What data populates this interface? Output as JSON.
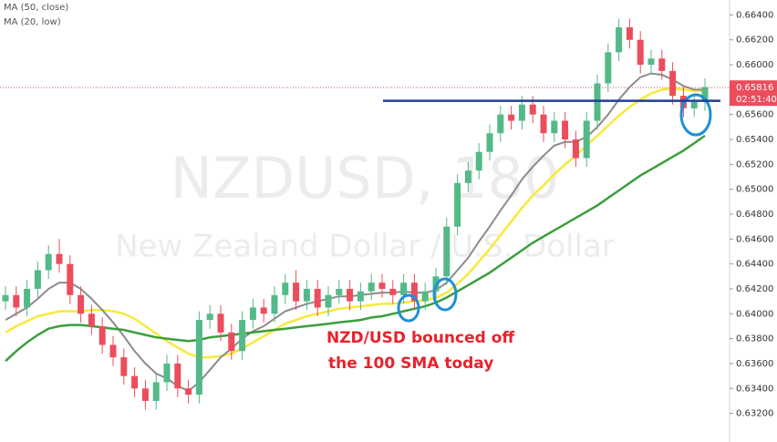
{
  "chart_data": {
    "type": "candlestick",
    "watermark_title": "NZDUSD, 180",
    "watermark_subtitle": "New Zealand Dollar / U.S. Dollar",
    "annotation_lines": [
      "NZD/USD bounced off",
      "the 100 SMA today"
    ],
    "annotation_color": "#e8222b",
    "up_color": "#53b987",
    "down_color": "#eb4d5c",
    "open": [
      0.641,
      0.6415,
      0.6405,
      0.642,
      0.6435,
      0.6448,
      0.644,
      0.6415,
      0.64,
      0.639,
      0.6375,
      0.6365,
      0.635,
      0.634,
      0.633,
      0.6345,
      0.636,
      0.634,
      0.6335,
      0.6395,
      0.64,
      0.6385,
      0.637,
      0.6395,
      0.6405,
      0.64,
      0.6415,
      0.6425,
      0.641,
      0.642,
      0.6405,
      0.6415,
      0.642,
      0.641,
      0.6418,
      0.6425,
      0.642,
      0.6415,
      0.6425,
      0.641,
      0.6418,
      0.643,
      0.647,
      0.6505,
      0.6515,
      0.653,
      0.6545,
      0.656,
      0.6555,
      0.6568,
      0.656,
      0.6545,
      0.6555,
      0.654,
      0.6525,
      0.6555,
      0.6585,
      0.661,
      0.663,
      0.662,
      0.66,
      0.6605,
      0.6595,
      0.6575,
      0.6565,
      0.657
    ],
    "high": [
      0.6422,
      0.6422,
      0.6427,
      0.6442,
      0.6455,
      0.646,
      0.6447,
      0.6422,
      0.6407,
      0.6397,
      0.6382,
      0.6372,
      0.6357,
      0.6347,
      0.6352,
      0.6367,
      0.6367,
      0.6347,
      0.6402,
      0.6407,
      0.6407,
      0.6392,
      0.6402,
      0.6412,
      0.6412,
      0.6422,
      0.6432,
      0.6435,
      0.6427,
      0.6427,
      0.6422,
      0.6427,
      0.6427,
      0.6425,
      0.6432,
      0.6432,
      0.6427,
      0.6432,
      0.6432,
      0.6425,
      0.6437,
      0.6477,
      0.6512,
      0.6522,
      0.6537,
      0.6552,
      0.6567,
      0.6567,
      0.6575,
      0.6575,
      0.6567,
      0.6562,
      0.6562,
      0.6547,
      0.6562,
      0.6592,
      0.6617,
      0.6637,
      0.6637,
      0.6627,
      0.6612,
      0.6612,
      0.6602,
      0.6582,
      0.6577,
      0.6589
    ],
    "low": [
      0.6403,
      0.6398,
      0.6398,
      0.6413,
      0.6428,
      0.6433,
      0.6408,
      0.6393,
      0.6383,
      0.6368,
      0.6358,
      0.6343,
      0.6333,
      0.6323,
      0.6323,
      0.6338,
      0.6333,
      0.6328,
      0.6328,
      0.6388,
      0.6378,
      0.6363,
      0.6363,
      0.6388,
      0.6393,
      0.6393,
      0.6408,
      0.6403,
      0.6403,
      0.6398,
      0.6398,
      0.6408,
      0.6403,
      0.6403,
      0.6411,
      0.6413,
      0.6408,
      0.6408,
      0.6403,
      0.6403,
      0.6411,
      0.6423,
      0.6463,
      0.6498,
      0.6508,
      0.6523,
      0.6538,
      0.6548,
      0.6548,
      0.6553,
      0.6538,
      0.6538,
      0.6533,
      0.6518,
      0.6518,
      0.6548,
      0.6578,
      0.6603,
      0.6613,
      0.6593,
      0.6593,
      0.6588,
      0.6568,
      0.6558,
      0.6558,
      0.6563
    ],
    "close": [
      0.6415,
      0.6405,
      0.642,
      0.6435,
      0.6448,
      0.644,
      0.6415,
      0.64,
      0.639,
      0.6375,
      0.6365,
      0.635,
      0.634,
      0.633,
      0.6345,
      0.636,
      0.634,
      0.6335,
      0.6395,
      0.64,
      0.6385,
      0.637,
      0.6395,
      0.6405,
      0.64,
      0.6415,
      0.6425,
      0.641,
      0.642,
      0.6405,
      0.6415,
      0.642,
      0.641,
      0.6418,
      0.6425,
      0.642,
      0.6415,
      0.6425,
      0.641,
      0.6418,
      0.643,
      0.647,
      0.6505,
      0.6515,
      0.653,
      0.6545,
      0.656,
      0.6555,
      0.6568,
      0.656,
      0.6545,
      0.6555,
      0.654,
      0.6525,
      0.6555,
      0.6585,
      0.661,
      0.663,
      0.662,
      0.66,
      0.6605,
      0.6595,
      0.6575,
      0.6565,
      0.657,
      0.6582
    ],
    "series": [
      {
        "name": "MA (50, close)",
        "color": "#f7e93c",
        "values": [
          0.6385,
          0.639,
          0.6394,
          0.6398,
          0.64,
          0.6402,
          0.6402,
          0.6402,
          0.6403,
          0.6403,
          0.6402,
          0.64,
          0.6396,
          0.639,
          0.6384,
          0.6378,
          0.6373,
          0.6368,
          0.6365,
          0.6365,
          0.6366,
          0.6368,
          0.6372,
          0.6377,
          0.6382,
          0.6387,
          0.6392,
          0.6395,
          0.6398,
          0.64,
          0.6402,
          0.6404,
          0.6405,
          0.6406,
          0.6407,
          0.6408,
          0.6408,
          0.6409,
          0.641,
          0.6411,
          0.6413,
          0.6417,
          0.6424,
          0.6432,
          0.6442,
          0.6452,
          0.6463,
          0.6474,
          0.6485,
          0.6495,
          0.6503,
          0.6512,
          0.652,
          0.6527,
          0.6535,
          0.6543,
          0.6551,
          0.6559,
          0.6566,
          0.6572,
          0.6577,
          0.658,
          0.6581,
          0.658,
          0.6579,
          0.6579
        ]
      },
      {
        "name": "MA (20, low)",
        "color": "#8c8c8c",
        "values": [
          0.6395,
          0.64,
          0.6405,
          0.6412,
          0.642,
          0.6425,
          0.6425,
          0.642,
          0.6412,
          0.6403,
          0.6393,
          0.6382,
          0.637,
          0.636,
          0.6352,
          0.6348,
          0.6342,
          0.6338,
          0.6345,
          0.6355,
          0.6365,
          0.6372,
          0.638,
          0.6386,
          0.639,
          0.6396,
          0.6402,
          0.6405,
          0.6408,
          0.641,
          0.6412,
          0.6414,
          0.6414,
          0.6415,
          0.6416,
          0.6417,
          0.6417,
          0.6418,
          0.6417,
          0.6417,
          0.6419,
          0.6425,
          0.6435,
          0.6445,
          0.6458,
          0.647,
          0.6483,
          0.6495,
          0.6508,
          0.6518,
          0.6527,
          0.6535,
          0.6538,
          0.6538,
          0.6542,
          0.655,
          0.656,
          0.6572,
          0.6582,
          0.659,
          0.6593,
          0.6592,
          0.6588,
          0.6583,
          0.658,
          0.658
        ]
      },
      {
        "color": "#3c9e3c",
        "values": [
          0.6362,
          0.637,
          0.6377,
          0.6383,
          0.6388,
          0.639,
          0.6391,
          0.6391,
          0.639,
          0.6389,
          0.6388,
          0.6387,
          0.6385,
          0.6383,
          0.6381,
          0.638,
          0.6379,
          0.6378,
          0.6379,
          0.6381,
          0.6382,
          0.6383,
          0.6384,
          0.6385,
          0.6386,
          0.6387,
          0.6388,
          0.6389,
          0.639,
          0.6391,
          0.6392,
          0.6393,
          0.6394,
          0.6395,
          0.6397,
          0.6398,
          0.64,
          0.6402,
          0.6404,
          0.6406,
          0.6409,
          0.6413,
          0.6418,
          0.6423,
          0.6428,
          0.6433,
          0.6439,
          0.6445,
          0.6451,
          0.6457,
          0.6462,
          0.6467,
          0.6472,
          0.6477,
          0.6482,
          0.6487,
          0.6493,
          0.6499,
          0.6505,
          0.6511,
          0.6516,
          0.6521,
          0.6526,
          0.6531,
          0.6537,
          0.6543
        ]
      }
    ],
    "horizontal_line": {
      "value": 0.6571,
      "color": "#1f3f94"
    },
    "last_price": {
      "value": 0.65816,
      "label": "0.65816"
    },
    "countdown": "02:51:40",
    "ylim": [
      0.6297,
      0.6652
    ],
    "yticks": [
      {
        "value": 0.632,
        "label": "0.63200"
      },
      {
        "value": 0.634,
        "label": "0.63400"
      },
      {
        "value": 0.636,
        "label": "0.63600"
      },
      {
        "value": 0.638,
        "label": "0.63800"
      },
      {
        "value": 0.64,
        "label": "0.64000"
      },
      {
        "value": 0.642,
        "label": "0.64200"
      },
      {
        "value": 0.644,
        "label": "0.64400"
      },
      {
        "value": 0.646,
        "label": "0.64600"
      },
      {
        "value": 0.648,
        "label": "0.64800"
      },
      {
        "value": 0.65,
        "label": "0.65000"
      },
      {
        "value": 0.652,
        "label": "0.65200"
      },
      {
        "value": 0.654,
        "label": "0.65400"
      },
      {
        "value": 0.656,
        "label": "0.65600"
      },
      {
        "value": 0.658,
        "label": "0.65800"
      },
      {
        "value": 0.66,
        "label": "0.66000"
      },
      {
        "value": 0.662,
        "label": "0.66200"
      },
      {
        "value": 0.664,
        "label": "0.66400"
      }
    ]
  }
}
